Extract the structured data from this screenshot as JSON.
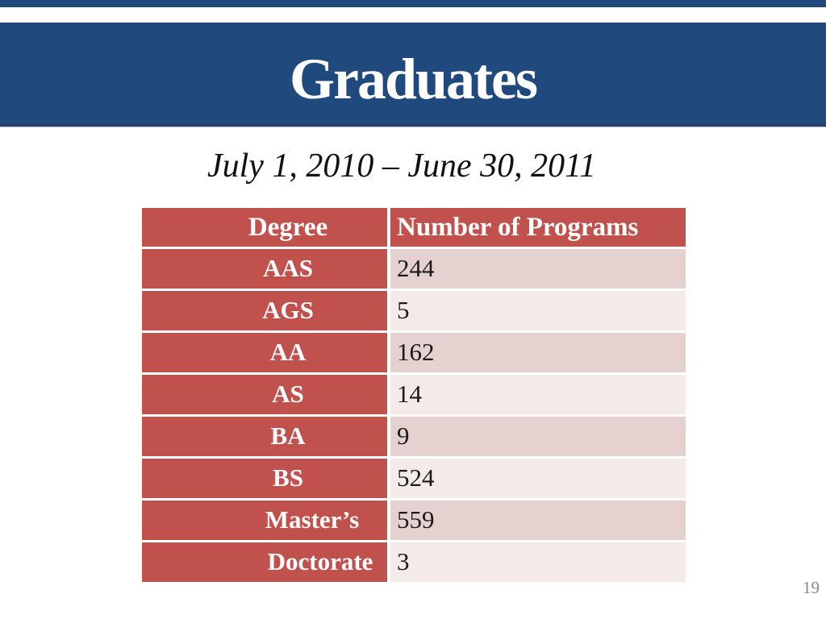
{
  "slide": {
    "title": "Graduates",
    "subtitle": "July 1, 2010 – June 30, 2011",
    "page_number": "19"
  },
  "colors": {
    "banner_blue": "#204a7d",
    "banner_border_dark": "#2a4166",
    "banner_border_light": "#aebdd3",
    "table_red": "#c1514d",
    "row_band_dark": "#e5d2d0",
    "row_band_light": "#f3eae9",
    "header_text": "#ffffff",
    "cell_text": "#1a1a1a",
    "page_number_gray": "#85878a"
  },
  "chart_data": {
    "type": "table",
    "title": "Graduates",
    "subtitle": "July 1, 2010 – June 30, 2011",
    "columns": [
      "Degree",
      "Number of Programs"
    ],
    "rows": [
      {
        "degree": "AAS",
        "programs": "244"
      },
      {
        "degree": "AGS",
        "programs": "5"
      },
      {
        "degree": "AA",
        "programs": "162"
      },
      {
        "degree": "AS",
        "programs": "14"
      },
      {
        "degree": "BA",
        "programs": "9"
      },
      {
        "degree": "BS",
        "programs": "524"
      },
      {
        "degree": "Master’s",
        "programs": "559"
      },
      {
        "degree": "Doctorate",
        "programs": "3"
      }
    ]
  }
}
